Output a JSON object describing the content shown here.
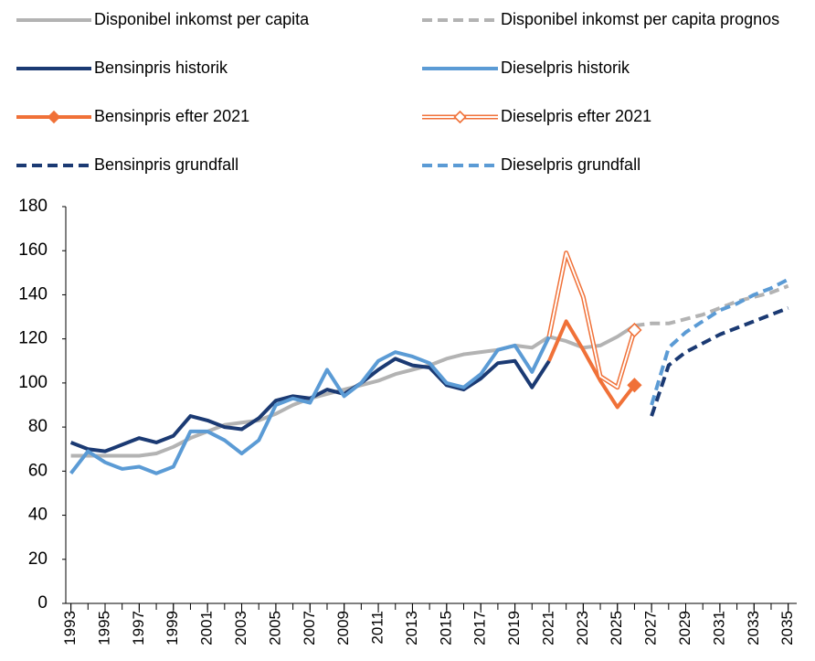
{
  "chart_data": {
    "type": "line",
    "x": [
      1993,
      1994,
      1995,
      1996,
      1997,
      1998,
      1999,
      2000,
      2001,
      2002,
      2003,
      2004,
      2005,
      2006,
      2007,
      2008,
      2009,
      2010,
      2011,
      2012,
      2013,
      2014,
      2015,
      2016,
      2017,
      2018,
      2019,
      2020,
      2021,
      2022,
      2023,
      2024,
      2025,
      2026,
      2027,
      2028,
      2029,
      2030,
      2031,
      2032,
      2033,
      2034,
      2035
    ],
    "xlim": [
      1992.7,
      2035.5
    ],
    "xticks": [
      1993,
      1995,
      1997,
      1999,
      2001,
      2003,
      2005,
      2007,
      2009,
      2011,
      2013,
      2015,
      2017,
      2019,
      2021,
      2023,
      2025,
      2027,
      2029,
      2031,
      2033,
      2035
    ],
    "ylim": [
      0,
      180
    ],
    "yticks": [
      0,
      20,
      40,
      60,
      80,
      100,
      120,
      140,
      160,
      180
    ],
    "grid": false,
    "series": [
      {
        "name": "Disponibel inkomst per capita",
        "color": "#b3b3b3",
        "dash": false,
        "double": false,
        "marker": null,
        "values": [
          67,
          67,
          67,
          67,
          67,
          68,
          71,
          75,
          78,
          81,
          82,
          83,
          86,
          90,
          93,
          95,
          97,
          99,
          101,
          104,
          106,
          108,
          111,
          113,
          114,
          115,
          117,
          116,
          121,
          119,
          116,
          117,
          121,
          126,
          null,
          null,
          null,
          null,
          null,
          null,
          null,
          null,
          null
        ]
      },
      {
        "name": "Disponibel inkomst per capita prognos",
        "color": "#b3b3b3",
        "dash": true,
        "double": false,
        "marker": null,
        "values": [
          null,
          null,
          null,
          null,
          null,
          null,
          null,
          null,
          null,
          null,
          null,
          null,
          null,
          null,
          null,
          null,
          null,
          null,
          null,
          null,
          null,
          null,
          null,
          null,
          null,
          null,
          null,
          null,
          null,
          null,
          null,
          null,
          null,
          126,
          127,
          127,
          129,
          131,
          134,
          137,
          139,
          141,
          144
        ]
      },
      {
        "name": "Bensinpris historik",
        "color": "#1b3a73",
        "dash": false,
        "double": false,
        "marker": null,
        "values": [
          73,
          70,
          69,
          72,
          75,
          73,
          76,
          85,
          83,
          80,
          79,
          84,
          92,
          94,
          93,
          97,
          95,
          100,
          106,
          111,
          108,
          107,
          99,
          97,
          102,
          109,
          110,
          98,
          110,
          null,
          null,
          null,
          null,
          null,
          null,
          null,
          null,
          null,
          null,
          null,
          null,
          null,
          null
        ]
      },
      {
        "name": "Dieselpris historik",
        "color": "#5b9bd5",
        "dash": false,
        "double": false,
        "marker": null,
        "values": [
          59,
          69,
          64,
          61,
          62,
          59,
          62,
          78,
          78,
          74,
          68,
          74,
          90,
          93,
          91,
          106,
          94,
          100,
          110,
          114,
          112,
          109,
          100,
          98,
          104,
          115,
          117,
          105,
          121,
          null,
          null,
          null,
          null,
          null,
          null,
          null,
          null,
          null,
          null,
          null,
          null,
          null,
          null
        ]
      },
      {
        "name": "Bensinpris efter 2021",
        "color": "#f07138",
        "dash": false,
        "double": false,
        "marker": "filled",
        "values": [
          null,
          null,
          null,
          null,
          null,
          null,
          null,
          null,
          null,
          null,
          null,
          null,
          null,
          null,
          null,
          null,
          null,
          null,
          null,
          null,
          null,
          null,
          null,
          null,
          null,
          null,
          null,
          null,
          110,
          128,
          115,
          101,
          89,
          99,
          null,
          null,
          null,
          null,
          null,
          null,
          null,
          null,
          null
        ]
      },
      {
        "name": "Dieselpris efter 2021",
        "color": "#f07138",
        "dash": false,
        "double": true,
        "marker": "open",
        "values": [
          null,
          null,
          null,
          null,
          null,
          null,
          null,
          null,
          null,
          null,
          null,
          null,
          null,
          null,
          null,
          null,
          null,
          null,
          null,
          null,
          null,
          null,
          null,
          null,
          null,
          null,
          null,
          null,
          121,
          159,
          139,
          103,
          98,
          124,
          null,
          null,
          null,
          null,
          null,
          null,
          null,
          null,
          null
        ]
      },
      {
        "name": "Bensinpris grundfall",
        "color": "#1b3a73",
        "dash": true,
        "double": false,
        "marker": null,
        "values": [
          null,
          null,
          null,
          null,
          null,
          null,
          null,
          null,
          null,
          null,
          null,
          null,
          null,
          null,
          null,
          null,
          null,
          null,
          null,
          null,
          null,
          null,
          null,
          null,
          null,
          null,
          null,
          null,
          null,
          null,
          null,
          null,
          null,
          null,
          85,
          108,
          114,
          118,
          122,
          125,
          128,
          131,
          134
        ]
      },
      {
        "name": "Dieselpris grundfall",
        "color": "#5b9bd5",
        "dash": true,
        "double": false,
        "marker": null,
        "values": [
          null,
          null,
          null,
          null,
          null,
          null,
          null,
          null,
          null,
          null,
          null,
          null,
          null,
          null,
          null,
          null,
          null,
          null,
          null,
          null,
          null,
          null,
          null,
          null,
          null,
          null,
          null,
          null,
          null,
          null,
          null,
          null,
          null,
          null,
          90,
          116,
          123,
          128,
          133,
          136,
          140,
          143,
          147
        ]
      }
    ]
  }
}
